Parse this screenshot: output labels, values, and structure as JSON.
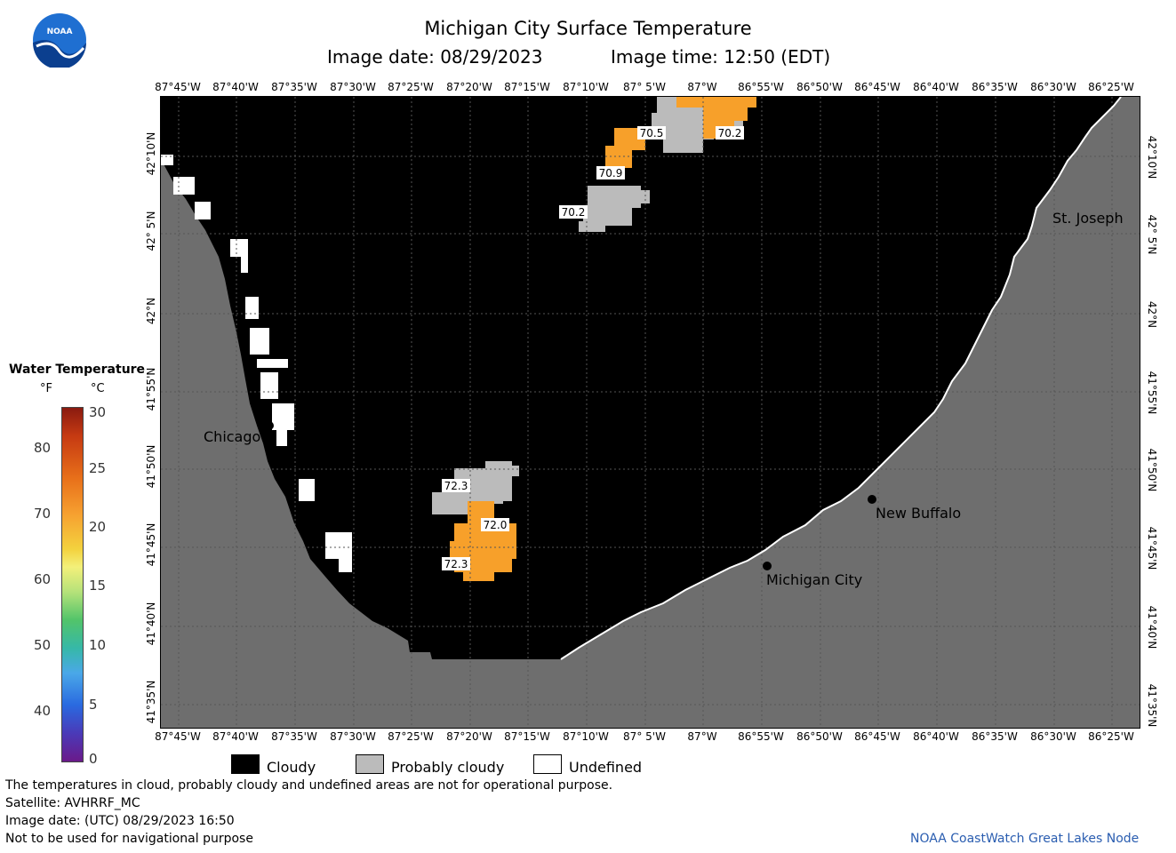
{
  "header": {
    "title": "Michigan City Surface Temperature",
    "image_date": "Image date: 08/29/2023",
    "image_time": "Image time: 12:50 (EDT)"
  },
  "logo": {
    "text": "NOAA",
    "icon": "noaa-logo-icon"
  },
  "longitude_ticks": [
    "87°45'W",
    "87°40'W",
    "87°35'W",
    "87°30'W",
    "87°25'W",
    "87°20'W",
    "87°15'W",
    "87°10'W",
    "87° 5'W",
    "87°W",
    "86°55'W",
    "86°50'W",
    "86°45'W",
    "86°40'W",
    "86°35'W",
    "86°30'W",
    "86°25'W"
  ],
  "latitude_ticks": [
    "42°10'N",
    "42° 5'N",
    "42°N",
    "41°55'N",
    "41°50'N",
    "41°45'N",
    "41°40'N",
    "41°35'N"
  ],
  "places": {
    "chicago": "Chicago",
    "st_joseph": "St. Joseph",
    "new_buffalo": "New Buffalo",
    "michigan_city": "Michigan City"
  },
  "temperature_labels": [
    "70.5",
    "70.2",
    "70.9",
    "70.2",
    "72.3",
    "72.0",
    "72.3"
  ],
  "legend": {
    "title": "Water Temperature",
    "unit_f": "°F",
    "unit_c": "°C",
    "f_ticks": [
      "80",
      "70",
      "60",
      "50",
      "40"
    ],
    "c_ticks": [
      "30",
      "25",
      "20",
      "15",
      "10",
      "5",
      "0"
    ]
  },
  "key": {
    "cloudy": "Cloudy",
    "probably_cloudy": "Probably cloudy",
    "undefined": "Undefined"
  },
  "footer": {
    "disclaimer": "The temperatures in cloud, probably cloudy and undefined areas are not for operational purpose.",
    "satellite": "Satellite: AVHRRF_MC",
    "utc_date": "Image date: (UTC) 08/29/2023  16:50",
    "navigation": "Not to be used for navigational purpose",
    "credit": "NOAA CoastWatch Great Lakes Node"
  },
  "colors": {
    "cloudy": "#000000",
    "land": "#6e6e6e",
    "probably_cloudy": "#bbbbbb",
    "undefined": "#ffffff",
    "warm_water": "#f7a02a",
    "credit": "#2a5db0"
  }
}
